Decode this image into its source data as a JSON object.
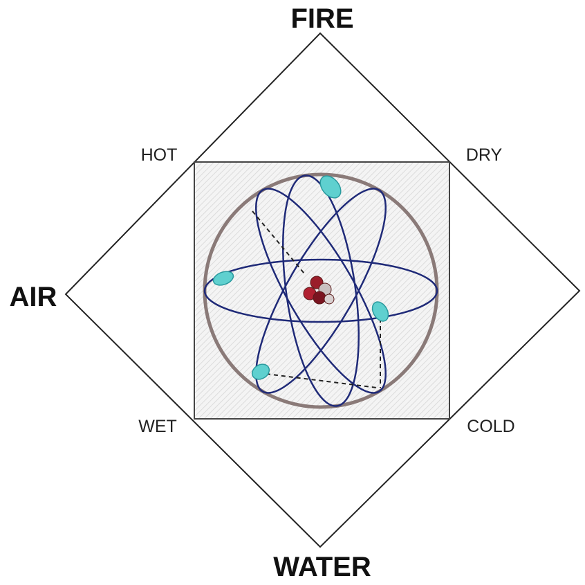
{
  "elements": {
    "top": "FIRE",
    "left": "AIR",
    "bottom": "WATER"
  },
  "qualities": {
    "top_left": "HOT",
    "top_right": "DRY",
    "bottom_left": "WET",
    "bottom_right": "COLD"
  }
}
